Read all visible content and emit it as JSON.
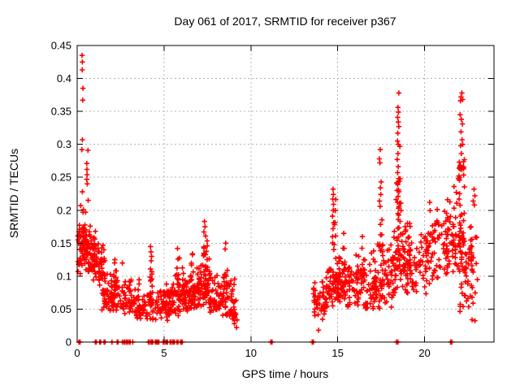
{
  "chart_data": {
    "type": "scatter",
    "title": "Day 061 of 2017, SRMTID for receiver p367",
    "xlabel": "GPS time / hours",
    "ylabel": "SRMTID / TECUs",
    "xlim": [
      0,
      24
    ],
    "ylim": [
      0,
      0.45
    ],
    "xticks": [
      0,
      5,
      10,
      15,
      20
    ],
    "xtick_labels": [
      "0",
      "5",
      "10",
      "15",
      "20"
    ],
    "yticks": [
      0,
      0.05,
      0.1,
      0.15,
      0.2,
      0.25,
      0.3,
      0.35,
      0.4,
      0.45
    ],
    "ytick_labels": [
      "0",
      "0.05",
      "0.1",
      "0.15",
      "0.2",
      "0.25",
      "0.3",
      "0.35",
      "0.4",
      "0.45"
    ],
    "grid": true,
    "grid_style": "dashed",
    "grid_color": "#b3b3b3",
    "legend": "none",
    "marker": {
      "shape": "plus",
      "color": "#ff0000",
      "half_size": 3.2,
      "stroke_width": 1.6
    },
    "axis_color": "#000000",
    "seed": 20170611,
    "points": [
      [
        0.28,
        0.435
      ],
      [
        0.3,
        0.425
      ],
      [
        0.29,
        0.413
      ],
      [
        0.33,
        0.385
      ],
      [
        0.32,
        0.367
      ],
      [
        0.3,
        0.307
      ],
      [
        0.27,
        0.292
      ],
      [
        0.62,
        0.291
      ],
      [
        0.55,
        0.271
      ],
      [
        0.56,
        0.262
      ],
      [
        0.57,
        0.254
      ],
      [
        0.55,
        0.247
      ],
      [
        0.58,
        0.24
      ],
      [
        0.3,
        0.228
      ],
      [
        0.63,
        0.215
      ],
      [
        0.2,
        0.207
      ],
      [
        0.36,
        0.201
      ],
      [
        0.48,
        0.197
      ],
      [
        0.05,
        0.155
      ],
      [
        0.04,
        0.122
      ],
      [
        0.08,
        0.118
      ],
      [
        0.05,
        0.107
      ],
      [
        1.05,
        0.168
      ],
      [
        2.17,
        0.125
      ],
      [
        2.6,
        0.12
      ],
      [
        4.22,
        0.145
      ],
      [
        4.25,
        0.137
      ],
      [
        5.78,
        0.142
      ],
      [
        6.64,
        0.134
      ],
      [
        7.33,
        0.183
      ],
      [
        7.36,
        0.175
      ],
      [
        7.3,
        0.167
      ],
      [
        7.39,
        0.161
      ],
      [
        8.55,
        0.15
      ],
      [
        8.52,
        0.141
      ],
      [
        8.95,
        0.035
      ],
      [
        9.05,
        0.028
      ],
      [
        9.18,
        0.022
      ],
      [
        13.9,
        0.018
      ],
      [
        14.73,
        0.232
      ],
      [
        14.75,
        0.224
      ],
      [
        14.72,
        0.217
      ],
      [
        14.76,
        0.209
      ],
      [
        14.74,
        0.2
      ],
      [
        14.7,
        0.191
      ],
      [
        14.77,
        0.181
      ],
      [
        14.73,
        0.172
      ],
      [
        15.35,
        0.165
      ],
      [
        16.42,
        0.16
      ],
      [
        17.45,
        0.292
      ],
      [
        17.4,
        0.278
      ],
      [
        17.43,
        0.272
      ],
      [
        17.5,
        0.243
      ],
      [
        17.46,
        0.234
      ],
      [
        17.48,
        0.224
      ],
      [
        17.41,
        0.214
      ],
      [
        17.44,
        0.206
      ],
      [
        18.52,
        0.378
      ],
      [
        18.47,
        0.356
      ],
      [
        18.5,
        0.349
      ],
      [
        18.45,
        0.341
      ],
      [
        18.49,
        0.334
      ],
      [
        18.52,
        0.327
      ],
      [
        18.46,
        0.317
      ],
      [
        18.44,
        0.305
      ],
      [
        18.5,
        0.3
      ],
      [
        18.47,
        0.286
      ],
      [
        18.43,
        0.277
      ],
      [
        18.49,
        0.266
      ],
      [
        18.45,
        0.257
      ],
      [
        18.51,
        0.248
      ],
      [
        18.46,
        0.239
      ],
      [
        18.42,
        0.23
      ],
      [
        18.48,
        0.221
      ],
      [
        18.44,
        0.212
      ],
      [
        18.5,
        0.203
      ],
      [
        18.47,
        0.195
      ],
      [
        20.3,
        0.212
      ],
      [
        21.7,
        0.236
      ],
      [
        22.15,
        0.378
      ],
      [
        22.1,
        0.372
      ],
      [
        22.2,
        0.368
      ],
      [
        22.07,
        0.366
      ],
      [
        22.05,
        0.345
      ],
      [
        22.12,
        0.338
      ],
      [
        22.18,
        0.331
      ],
      [
        22.1,
        0.319
      ],
      [
        22.16,
        0.307
      ],
      [
        22.2,
        0.3
      ],
      [
        22.08,
        0.298
      ],
      [
        22.12,
        0.286
      ],
      [
        22.0,
        0.273
      ],
      [
        22.06,
        0.268
      ],
      [
        22.14,
        0.262
      ],
      [
        21.98,
        0.252
      ],
      [
        22.85,
        0.232
      ],
      [
        22.9,
        0.222
      ],
      [
        22.8,
        0.214
      ],
      [
        22.87,
        0.208
      ]
    ],
    "zero_points_x": [
      0.1,
      0.13,
      0.15,
      0.17,
      1.05,
      1.1,
      1.3,
      1.35,
      1.55,
      1.6,
      2.0,
      2.3,
      2.35,
      2.6,
      2.7,
      2.75,
      2.85,
      2.9,
      3.0,
      3.05,
      3.2,
      4.1,
      4.15,
      4.25,
      4.3,
      4.35,
      4.5,
      4.55,
      4.6,
      4.65,
      4.7,
      4.95,
      5.0,
      5.1,
      5.15,
      5.2,
      5.35,
      5.4,
      5.5,
      5.55,
      5.6,
      5.75,
      5.8,
      5.95,
      6.0,
      6.05,
      11.15,
      11.18,
      11.22,
      13.53,
      13.56,
      13.6,
      18.38,
      18.47,
      21.5,
      21.53,
      21.57
    ],
    "clusters": [
      {
        "x": [
          0.05,
          0.45
        ],
        "y": [
          0.125,
          0.2
        ],
        "n": 34,
        "bias": 1.1
      },
      {
        "x": [
          0.1,
          0.95
        ],
        "y": [
          0.1,
          0.17
        ],
        "n": 48,
        "bias": 1.2
      },
      {
        "x": [
          0.45,
          1.05
        ],
        "y": [
          0.11,
          0.19
        ],
        "n": 30,
        "bias": 1.1
      },
      {
        "x": [
          0.9,
          1.6
        ],
        "y": [
          0.08,
          0.16
        ],
        "n": 44,
        "bias": 1.2
      },
      {
        "x": [
          1.4,
          2.2
        ],
        "y": [
          0.045,
          0.11
        ],
        "n": 52,
        "bias": 1.3
      },
      {
        "x": [
          2.0,
          3.6
        ],
        "y": [
          0.04,
          0.1
        ],
        "n": 85,
        "bias": 1.3
      },
      {
        "x": [
          3.4,
          5.2
        ],
        "y": [
          0.03,
          0.09
        ],
        "n": 95,
        "bias": 1.3
      },
      {
        "x": [
          5.0,
          6.2
        ],
        "y": [
          0.04,
          0.115
        ],
        "n": 85,
        "bias": 1.3
      },
      {
        "x": [
          6.1,
          7.0
        ],
        "y": [
          0.045,
          0.11
        ],
        "n": 70,
        "bias": 1.3
      },
      {
        "x": [
          6.9,
          7.7
        ],
        "y": [
          0.05,
          0.13
        ],
        "n": 62,
        "bias": 1.3
      },
      {
        "x": [
          7.6,
          9.2
        ],
        "y": [
          0.035,
          0.11
        ],
        "n": 92,
        "bias": 1.3
      },
      {
        "x": [
          8.9,
          9.25
        ],
        "y": [
          0.02,
          0.06
        ],
        "n": 12,
        "bias": 1.0
      },
      {
        "x": [
          1.0,
          1.15
        ],
        "y": [
          0.09,
          0.165
        ],
        "n": 10,
        "bias": 1.0
      },
      {
        "x": [
          2.1,
          2.3
        ],
        "y": [
          0.05,
          0.125
        ],
        "n": 12,
        "bias": 1.0
      },
      {
        "x": [
          4.15,
          4.35
        ],
        "y": [
          0.05,
          0.145
        ],
        "n": 12,
        "bias": 1.0
      },
      {
        "x": [
          5.65,
          5.95
        ],
        "y": [
          0.06,
          0.14
        ],
        "n": 13,
        "bias": 1.0
      },
      {
        "x": [
          6.5,
          6.7
        ],
        "y": [
          0.05,
          0.134
        ],
        "n": 10,
        "bias": 1.0
      },
      {
        "x": [
          7.25,
          7.5
        ],
        "y": [
          0.07,
          0.185
        ],
        "n": 15,
        "bias": 1.0
      },
      {
        "x": [
          8.45,
          8.7
        ],
        "y": [
          0.05,
          0.12
        ],
        "n": 13,
        "bias": 1.0
      },
      {
        "x": [
          13.6,
          14.35
        ],
        "y": [
          0.03,
          0.095
        ],
        "n": 46,
        "bias": 1.2
      },
      {
        "x": [
          14.3,
          15.2
        ],
        "y": [
          0.05,
          0.125
        ],
        "n": 60,
        "bias": 1.2
      },
      {
        "x": [
          15.0,
          16.2
        ],
        "y": [
          0.05,
          0.135
        ],
        "n": 70,
        "bias": 1.2
      },
      {
        "x": [
          16.0,
          17.25
        ],
        "y": [
          0.04,
          0.145
        ],
        "n": 70,
        "bias": 1.2
      },
      {
        "x": [
          17.1,
          18.25
        ],
        "y": [
          0.05,
          0.15
        ],
        "n": 68,
        "bias": 1.2
      },
      {
        "x": [
          18.2,
          19.2
        ],
        "y": [
          0.07,
          0.185
        ],
        "n": 62,
        "bias": 1.15
      },
      {
        "x": [
          18.7,
          20.1
        ],
        "y": [
          0.07,
          0.2
        ],
        "n": 62,
        "bias": 1.25
      },
      {
        "x": [
          20.0,
          21.35
        ],
        "y": [
          0.08,
          0.21
        ],
        "n": 72,
        "bias": 1.15
      },
      {
        "x": [
          21.2,
          22.3
        ],
        "y": [
          0.09,
          0.235
        ],
        "n": 72,
        "bias": 1.15
      },
      {
        "x": [
          22.0,
          22.75
        ],
        "y": [
          0.04,
          0.19
        ],
        "n": 48,
        "bias": 1.2
      },
      {
        "x": [
          22.65,
          23.05
        ],
        "y": [
          0.02,
          0.21
        ],
        "n": 20,
        "bias": 1.1
      },
      {
        "x": [
          14.65,
          14.9
        ],
        "y": [
          0.08,
          0.225
        ],
        "n": 16,
        "bias": 1.0
      },
      {
        "x": [
          15.3,
          15.5
        ],
        "y": [
          0.07,
          0.165
        ],
        "n": 11,
        "bias": 1.0
      },
      {
        "x": [
          16.3,
          16.55
        ],
        "y": [
          0.07,
          0.16
        ],
        "n": 11,
        "bias": 1.0
      },
      {
        "x": [
          17.3,
          17.65
        ],
        "y": [
          0.1,
          0.21
        ],
        "n": 13,
        "bias": 1.0
      },
      {
        "x": [
          18.35,
          18.65
        ],
        "y": [
          0.09,
          0.3
        ],
        "n": 22,
        "bias": 1.0
      },
      {
        "x": [
          21.95,
          22.3
        ],
        "y": [
          0.19,
          0.3
        ],
        "n": 18,
        "bias": 1.0
      }
    ]
  }
}
